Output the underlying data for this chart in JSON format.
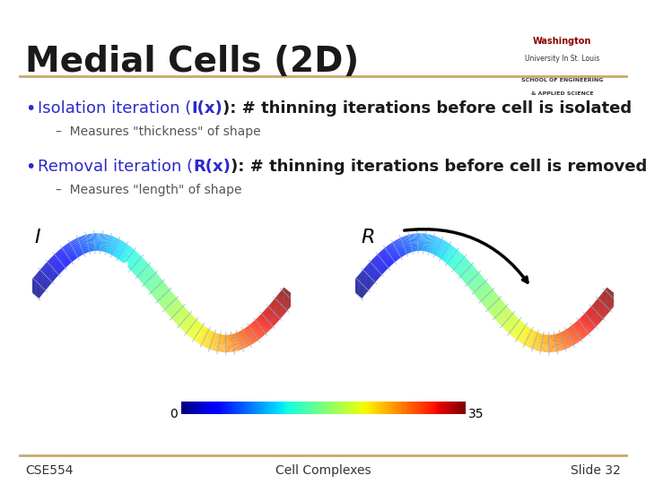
{
  "title": "Medial Cells (2D)",
  "bullet1_blue": "Isolation iteration (",
  "bullet1_bold": "I(x)",
  "bullet1_rest": "): # thinning iterations before cell is isolated",
  "sub1": "Measures \"thickness\" of shape",
  "bullet2_blue": "Removal iteration (",
  "bullet2_bold": "R(x)",
  "bullet2_rest": "): # thinning iterations before cell is removed",
  "sub2": "Measures \"length\" of shape",
  "label_I": "I",
  "label_R": "R",
  "colorbar_min": "0",
  "colorbar_max": "35",
  "footer_left": "CSE554",
  "footer_center": "Cell Complexes",
  "footer_right": "Slide 32",
  "gold_color": "#C8A96E",
  "blue_color": "#2929CC",
  "title_color": "#1a1a1a",
  "bg_color": "#FFFFFF",
  "text_color": "#333333",
  "sub_color": "#555555"
}
